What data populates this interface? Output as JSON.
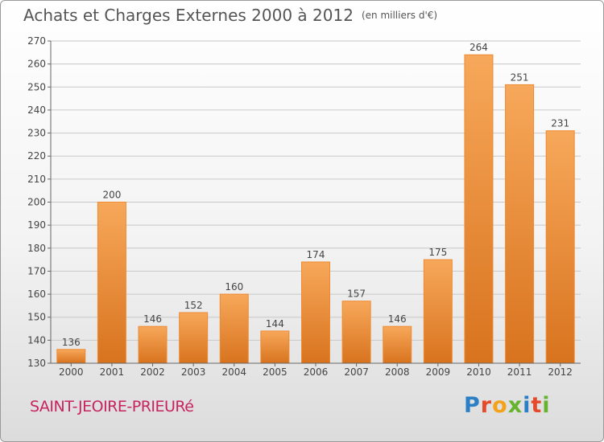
{
  "title": "Achats et Charges Externes 2000 à 2012",
  "unit": "(en milliers d'€)",
  "place": "SAINT-JEOIRE-PRIEURé",
  "logo_text": "Proxiti",
  "logo_colors": [
    "#2b7fc4",
    "#e34b2a",
    "#f3a21a",
    "#66b32e",
    "#2b7fc4",
    "#e34b2a",
    "#66b32e"
  ],
  "colors": {
    "bar": "#ee8a34",
    "bar_light": "#f7a85a",
    "bar_dark": "#d8731e",
    "grid": "#c8c8c8",
    "axis": "#666666",
    "text": "#444444"
  },
  "chart_data": {
    "type": "bar",
    "title": "Achats et Charges Externes 2000 à 2012",
    "xlabel": "",
    "ylabel": "",
    "ylim": [
      130,
      270
    ],
    "ytick_step": 10,
    "grid": true,
    "categories": [
      "2000",
      "2001",
      "2002",
      "2003",
      "2004",
      "2005",
      "2006",
      "2007",
      "2008",
      "2009",
      "2010",
      "2011",
      "2012"
    ],
    "values": [
      136,
      200,
      146,
      152,
      160,
      144,
      174,
      157,
      146,
      175,
      264,
      251,
      231
    ]
  }
}
